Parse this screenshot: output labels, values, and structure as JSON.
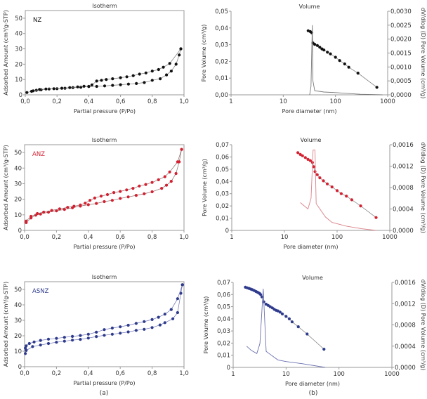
{
  "figure": {
    "label_a": "(a)",
    "label_b": "(b)"
  },
  "chart_data": [
    {
      "type": "line",
      "panel": "isotherm",
      "title": "Isotherm",
      "sample_label": "NZ",
      "color": "#111111",
      "line_color": "#777777",
      "xlabel": "Partial pressure (P/Po)",
      "ylabel": "Adsorbed Amount (cm³/g-STP)",
      "xlim": [
        0,
        1
      ],
      "ylim": [
        0,
        55
      ],
      "xtick_values": [
        0,
        0.2,
        0.4,
        0.6,
        0.8,
        1.0
      ],
      "xtick_labels": [
        "0,0",
        "0,2",
        "0,4",
        "0,6",
        "0,8",
        "1,0"
      ],
      "ytick_values": [
        0,
        10,
        20,
        30,
        40,
        50
      ],
      "ytick_labels": [
        "0",
        "10",
        "20",
        "30",
        "40",
        "50"
      ],
      "series": [
        {
          "x": [
            0.01,
            0.04,
            0.07,
            0.1,
            0.15,
            0.2,
            0.25,
            0.3,
            0.35,
            0.4,
            0.45,
            0.5,
            0.55,
            0.6,
            0.65,
            0.7,
            0.75,
            0.8,
            0.85,
            0.89,
            0.92,
            0.95,
            0.97,
            0.98
          ],
          "y": [
            1.5,
            2.3,
            3.0,
            3.3,
            3.8,
            4.0,
            4.3,
            4.7,
            5.0,
            5.4,
            5.5,
            5.8,
            6.2,
            6.6,
            7.0,
            7.4,
            8.0,
            9.5,
            10.5,
            13.0,
            15.5,
            20.0,
            26.0,
            30.0
          ]
        },
        {
          "x": [
            0.98,
            0.91,
            0.87,
            0.84,
            0.8,
            0.76,
            0.72,
            0.68,
            0.64,
            0.6,
            0.55,
            0.51,
            0.48,
            0.45,
            0.42,
            0.4,
            0.37,
            0.33,
            0.28,
            0.23,
            0.18,
            0.13,
            0.09,
            0.05
          ],
          "y": [
            30.0,
            20.5,
            18.0,
            16.5,
            15.5,
            14.3,
            13.5,
            12.5,
            11.8,
            11.2,
            10.5,
            10.0,
            9.5,
            9.0,
            6.5,
            5.5,
            5.6,
            5.2,
            4.7,
            4.3,
            4.0,
            3.8,
            3.5,
            2.6
          ]
        }
      ]
    },
    {
      "type": "line",
      "panel": "volume",
      "title": "Volume",
      "color": "#111111",
      "line_color": "#777777",
      "xlabel": "Pore diameter (nm)",
      "ylabel": "Pore Volume (cm³/g)",
      "y2label": "dV/dlog (D) Pore Volume (cm³/g)",
      "xscale": "log",
      "xlim": [
        1,
        1000
      ],
      "ylim": [
        0,
        0.05
      ],
      "y2lim": [
        0,
        0.003
      ],
      "xtick_values": [
        1,
        10,
        100,
        1000
      ],
      "xtick_labels": [
        "1",
        "10",
        "100",
        "1000"
      ],
      "ytick_values": [
        0,
        0.01,
        0.02,
        0.03,
        0.04,
        0.05
      ],
      "ytick_labels": [
        "0,00",
        "0,01",
        "0,02",
        "0,03",
        "0,04",
        "0,05"
      ],
      "y2tick_values": [
        0,
        0.0005,
        0.001,
        0.0015,
        0.002,
        0.0025,
        0.003
      ],
      "y2tick_labels": [
        "0,0000",
        "0,0005",
        "0,0010",
        "0,0015",
        "0,0020",
        "0,0025",
        "0,0030"
      ],
      "series": [
        {
          "axis": "left",
          "markers": true,
          "x": [
            30,
            33,
            35,
            37,
            40,
            45,
            50,
            55,
            60,
            70,
            80,
            100,
            120,
            150,
            180,
            270,
            620
          ],
          "y": [
            0.0383,
            0.0378,
            0.0372,
            0.031,
            0.0302,
            0.0295,
            0.0285,
            0.0275,
            0.0268,
            0.0255,
            0.0245,
            0.0225,
            0.0205,
            0.0185,
            0.0165,
            0.013,
            0.0045
          ]
        },
        {
          "axis": "right",
          "markers": false,
          "x": [
            32,
            34,
            36,
            37,
            40,
            60,
            100,
            300,
            800
          ],
          "y": [
            0,
            0.0003,
            0.0025,
            0.0005,
            0.00015,
            0.0001,
            8e-05,
            2e-05,
            0
          ]
        }
      ]
    },
    {
      "type": "line",
      "panel": "isotherm",
      "title": "Isotherm",
      "sample_label": "ANZ",
      "color": "#d42030",
      "line_color": "#8a6a6a",
      "xlabel": "Partial pressure (P/Po)",
      "ylabel": "Adsorbed Amount (cm³/g-STP)",
      "xlim": [
        0,
        1
      ],
      "ylim": [
        0,
        55
      ],
      "xtick_values": [
        0,
        0.2,
        0.4,
        0.6,
        0.8,
        1.0
      ],
      "xtick_labels": [
        "0,0",
        "0,2",
        "0,4",
        "0,6",
        "0,8",
        "1,0"
      ],
      "ytick_values": [
        0,
        10,
        20,
        30,
        40,
        50
      ],
      "ytick_labels": [
        "0",
        "10",
        "20",
        "30",
        "40",
        "50"
      ],
      "series": [
        {
          "x": [
            0.01,
            0.04,
            0.07,
            0.1,
            0.15,
            0.2,
            0.25,
            0.3,
            0.35,
            0.4,
            0.45,
            0.5,
            0.55,
            0.6,
            0.65,
            0.7,
            0.75,
            0.8,
            0.86,
            0.89,
            0.92,
            0.95,
            0.97,
            0.985
          ],
          "y": [
            5,
            8,
            9.8,
            10.5,
            11.7,
            12.6,
            13.5,
            14.5,
            15.6,
            16.5,
            17.3,
            18.5,
            19.3,
            20.5,
            21.5,
            22.5,
            23.5,
            24.8,
            27,
            29,
            31.5,
            36.5,
            44,
            52
          ]
        },
        {
          "x": [
            0.985,
            0.96,
            0.91,
            0.88,
            0.84,
            0.8,
            0.76,
            0.72,
            0.68,
            0.64,
            0.6,
            0.56,
            0.52,
            0.48,
            0.44,
            0.41,
            0.38,
            0.35,
            0.31,
            0.27,
            0.22,
            0.17,
            0.12,
            0.08,
            0.04,
            0.01
          ],
          "y": [
            52,
            44,
            37.5,
            34.5,
            32.5,
            30.8,
            29.5,
            28.5,
            27,
            26,
            25,
            24.3,
            23,
            22,
            20.8,
            19.3,
            17.5,
            16.3,
            15.5,
            14.8,
            13.8,
            12.8,
            11.7,
            10.8,
            9,
            6
          ]
        }
      ]
    },
    {
      "type": "line",
      "panel": "volume",
      "title": "Volume",
      "color": "#d42030",
      "line_color": "#d98088",
      "xlabel": "Pore diameter (nm)",
      "ylabel": "Pore Volume (cm³/g)",
      "y2label": "dV/dlog (D) Pore Volume (cm³/g)",
      "xscale": "log",
      "xlim": [
        1,
        1000
      ],
      "ylim": [
        0,
        0.07
      ],
      "y2lim": [
        0,
        0.0016
      ],
      "xtick_values": [
        1,
        10,
        100,
        1000
      ],
      "xtick_labels": [
        "1",
        "10",
        "100",
        "1000"
      ],
      "ytick_values": [
        0,
        0.01,
        0.02,
        0.03,
        0.04,
        0.05,
        0.06,
        0.07
      ],
      "ytick_labels": [
        "0",
        "0,01",
        "0,02",
        "0,03",
        "0,04",
        "0,05",
        "0,06",
        "0,07"
      ],
      "y2tick_values": [
        0,
        0.0004,
        0.0008,
        0.0012,
        0.0016
      ],
      "y2tick_labels": [
        "0,0000",
        "0,0004",
        "0,0008",
        "0,0012",
        "0,0016"
      ],
      "series": [
        {
          "axis": "left",
          "markers": true,
          "x": [
            18,
            20,
            22,
            25,
            28,
            31,
            34,
            36,
            38,
            42,
            47,
            55,
            65,
            80,
            100,
            120,
            150,
            190,
            280,
            550
          ],
          "y": [
            0.0635,
            0.062,
            0.061,
            0.0595,
            0.058,
            0.057,
            0.0555,
            0.052,
            0.048,
            0.0455,
            0.043,
            0.0405,
            0.038,
            0.0355,
            0.0325,
            0.03,
            0.028,
            0.025,
            0.02,
            0.0105
          ]
        },
        {
          "axis": "right",
          "markers": false,
          "x": [
            20,
            28,
            32,
            35,
            38,
            40,
            60,
            80,
            150,
            300,
            550
          ],
          "y": [
            0.00052,
            0.0004,
            0.0006,
            0.0015,
            0.0015,
            0.0005,
            0.00025,
            0.00015,
            8e-05,
            3e-05,
            0
          ]
        }
      ]
    },
    {
      "type": "line",
      "panel": "isotherm",
      "title": "Isotherm",
      "sample_label": "ASNZ",
      "color": "#2e3a8c",
      "line_color": "#6a70b0",
      "xlabel": "Partial pressure (P/Po)",
      "ylabel": "Adsorbed Amount (cm³/g-STP)",
      "xlim": [
        0,
        1
      ],
      "ylim": [
        0,
        55
      ],
      "xtick_values": [
        0,
        0.2,
        0.4,
        0.6,
        0.8,
        1.0
      ],
      "xtick_labels": [
        "0,0",
        "0,2",
        "0,4",
        "0,6",
        "0,8",
        "1,0"
      ],
      "ytick_values": [
        0,
        10,
        20,
        30,
        40,
        50
      ],
      "ytick_labels": [
        "0",
        "10",
        "20",
        "30",
        "40",
        "50"
      ],
      "series": [
        {
          "x": [
            0.005,
            0.01,
            0.05,
            0.1,
            0.15,
            0.2,
            0.25,
            0.3,
            0.35,
            0.4,
            0.45,
            0.5,
            0.55,
            0.6,
            0.65,
            0.7,
            0.75,
            0.8,
            0.85,
            0.88,
            0.93,
            0.96,
            0.98,
            0.99
          ],
          "y": [
            8.5,
            10.5,
            13,
            14,
            15,
            15.8,
            16.5,
            17.2,
            17.7,
            18.5,
            19.5,
            20.3,
            21,
            21.7,
            22.5,
            23.5,
            24.2,
            25.3,
            27,
            28.5,
            31,
            35,
            47.5,
            53
          ]
        },
        {
          "x": [
            0.99,
            0.96,
            0.92,
            0.88,
            0.84,
            0.8,
            0.75,
            0.7,
            0.65,
            0.6,
            0.55,
            0.5,
            0.45,
            0.4,
            0.35,
            0.3,
            0.25,
            0.2,
            0.15,
            0.1,
            0.06,
            0.03,
            0.01,
            0.005
          ],
          "y": [
            53,
            44,
            37,
            34,
            32,
            30.5,
            29.2,
            28,
            26.8,
            25.8,
            25,
            24,
            22.3,
            21,
            20.2,
            19.6,
            19,
            18.3,
            17.8,
            17,
            16,
            15,
            13.5,
            12
          ]
        }
      ]
    },
    {
      "type": "line",
      "panel": "volume",
      "title": "Volume",
      "color": "#2e3a8c",
      "line_color": "#6a70b0",
      "xlabel": "Pore diameter (nm)",
      "ylabel": "Pore Volume (cm³/g)",
      "y2label": "dV/dlog (D) Pore Volume (cm³/g)",
      "xscale": "log",
      "xlim": [
        1,
        1000
      ],
      "ylim": [
        0,
        0.07
      ],
      "y2lim": [
        0,
        0.0016
      ],
      "xtick_values": [
        1,
        10,
        100,
        1000
      ],
      "xtick_labels": [
        "1",
        "10",
        "100",
        "1000"
      ],
      "ytick_values": [
        0,
        0.01,
        0.02,
        0.03,
        0.04,
        0.05,
        0.06,
        0.07
      ],
      "ytick_labels": [
        "0",
        "0,01",
        "0,02",
        "0,03",
        "0,04",
        "0,05",
        "0,06",
        "0,07"
      ],
      "y2tick_values": [
        0,
        0.0004,
        0.0008,
        0.0012,
        0.0016
      ],
      "y2tick_labels": [
        "0,0000",
        "0,0004",
        "0,0008",
        "0,0012",
        "0,0016"
      ],
      "series": [
        {
          "axis": "left",
          "markers": true,
          "x": [
            1.7,
            1.85,
            2,
            2.15,
            2.3,
            2.5,
            2.7,
            2.85,
            3,
            3.15,
            3.3,
            3.5,
            3.8,
            4.2,
            4.6,
            5,
            5.5,
            6,
            6.5,
            7,
            7.7,
            8.5,
            10,
            11.5,
            13,
            17,
            25,
            52
          ],
          "y": [
            0.066,
            0.0655,
            0.065,
            0.0645,
            0.064,
            0.0633,
            0.0625,
            0.062,
            0.0615,
            0.061,
            0.06,
            0.058,
            0.054,
            0.052,
            0.051,
            0.05,
            0.049,
            0.0478,
            0.047,
            0.0465,
            0.0455,
            0.044,
            0.042,
            0.04,
            0.0375,
            0.0335,
            0.0275,
            0.015
          ]
        },
        {
          "axis": "right",
          "markers": false,
          "x": [
            1.8,
            2.2,
            2.8,
            3.2,
            3.7,
            4.2,
            7,
            10,
            20,
            55
          ],
          "y": [
            0.0004,
            0.00032,
            0.00026,
            0.00045,
            0.00148,
            0.0003,
            0.00014,
            0.00011,
            7e-05,
            0
          ]
        }
      ]
    }
  ]
}
